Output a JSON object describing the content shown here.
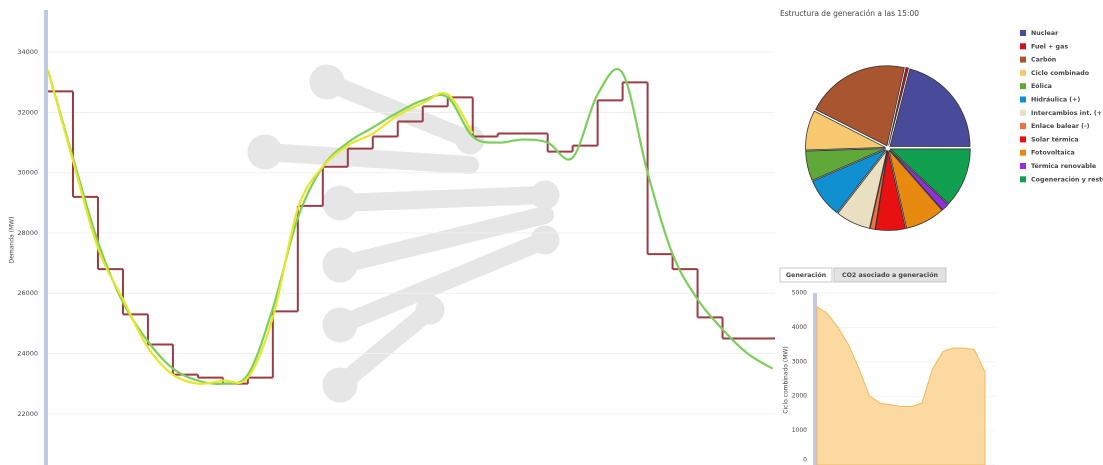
{
  "chart_data": [
    {
      "type": "line",
      "y_label": "Demanda (MW)",
      "x": [
        0,
        1,
        2,
        3,
        4,
        5,
        6,
        7,
        8,
        9,
        10,
        11,
        12,
        13,
        14,
        15,
        16,
        17,
        18,
        19,
        20,
        21,
        22,
        23,
        24,
        25,
        26,
        27,
        28,
        29
      ],
      "xlim": [
        0,
        29.1
      ],
      "ylim": [
        20300,
        35400
      ],
      "yticks": [
        22000,
        24000,
        26000,
        28000,
        30000,
        32000,
        34000
      ],
      "grid": true,
      "series": [
        {
          "color": "#9b3b46",
          "shape": "step",
          "values": [
            32700,
            29200,
            26800,
            25300,
            24300,
            23300,
            23200,
            23000,
            23200,
            25400,
            28900,
            30200,
            30800,
            31200,
            31700,
            32200,
            32500,
            31200,
            31300,
            31300,
            30700,
            30900,
            32400,
            33000,
            27300,
            26800,
            25200,
            24500,
            24500,
            24500
          ]
        },
        {
          "color": "#7ccf5c",
          "shape": "smooth",
          "values": [
            33400,
            30500,
            27700,
            25700,
            24400,
            23500,
            23100,
            23000,
            23300,
            25500,
            28500,
            30200,
            31000,
            31500,
            32000,
            32400,
            32500,
            31200,
            31000,
            31100,
            31000,
            30500,
            32600,
            33300,
            30000,
            27300,
            25800,
            24800,
            24000,
            23500
          ]
        },
        {
          "color": "#e6e62a",
          "shape": "smooth",
          "values": [
            33400,
            30400,
            27500,
            25800,
            24200,
            23300,
            23000,
            23100,
            23200,
            25200,
            28800,
            30200,
            30900,
            31300,
            31900,
            32300,
            32600,
            31300,
            null,
            null,
            null,
            null,
            null,
            null,
            null,
            null,
            null,
            null,
            null,
            null
          ]
        }
      ]
    },
    {
      "type": "pie",
      "title": "Estructura de generación a las 15:00",
      "legend": "right",
      "categories": [
        "Nuclear",
        "Fuel + gas",
        "Carbón",
        "Ciclo combinado",
        "Eólica",
        "Hidráulica (+)",
        "Intercambios int. (+)",
        "Enlace balear (-)",
        "Solar térmica",
        "Fotovoltaica",
        "Térmica renovable",
        "Cogeneración y resto"
      ],
      "values": [
        21,
        0.5,
        21,
        8,
        6,
        8,
        7,
        1,
        6,
        8,
        1.5,
        12
      ],
      "colors": [
        "#4a4a9b",
        "#cc1020",
        "#a85530",
        "#f8c870",
        "#60a838",
        "#1090d0",
        "#e8e0c0",
        "#f07040",
        "#e81010",
        "#e88a10",
        "#9030e0",
        "#10a050"
      ]
    },
    {
      "type": "area",
      "tabs": [
        "Generación",
        "CO2 asociado a generación"
      ],
      "active_tab": 0,
      "y_label": "Ciclo combinado (MW)",
      "x": [
        0,
        1,
        2,
        3,
        4,
        5,
        6,
        7,
        8,
        9,
        10,
        11,
        12,
        13,
        14,
        15,
        16
      ],
      "xlim": [
        0,
        16
      ],
      "ylim": [
        0,
        5000
      ],
      "yticks": [
        0,
        1000,
        2000,
        3000,
        4000,
        5000
      ],
      "color": "#fbd9a0",
      "values": [
        4600,
        4400,
        4000,
        3500,
        2800,
        2000,
        1800,
        1750,
        1700,
        1700,
        1800,
        2800,
        3300,
        3400,
        3400,
        3350,
        2700
      ]
    }
  ]
}
